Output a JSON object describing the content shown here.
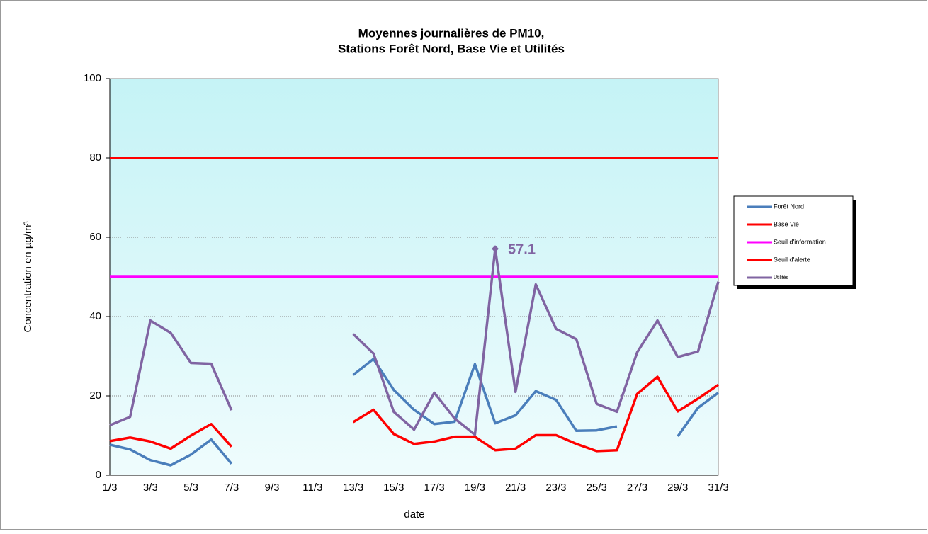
{
  "chart_data": {
    "type": "line",
    "title": [
      "Moyennes journalières de PM10,",
      "Stations Forêt Nord, Base Vie et Utilités"
    ],
    "x_label": "date",
    "y_label": "Concentration en µg/m³",
    "categories": [
      "1/3",
      null,
      "3/3",
      null,
      "5/3",
      null,
      "7/3",
      null,
      "9/3",
      null,
      "11/3",
      null,
      "13/3",
      null,
      "15/3",
      null,
      "17/3",
      null,
      "19/3",
      null,
      "21/3",
      null,
      "23/3",
      null,
      "25/3",
      null,
      "27/3",
      null,
      "29/3",
      null,
      "31/3"
    ],
    "ylim": [
      0,
      100
    ],
    "yticks": [
      0,
      20,
      40,
      60,
      80,
      100
    ],
    "grid": true,
    "legend": "right",
    "series": [
      {
        "name": "Forêt Nord",
        "color": "#4a7ebb",
        "values": [
          7.7,
          6.5,
          3.8,
          2.5,
          5.2,
          9.0,
          2.9,
          null,
          null,
          null,
          null,
          null,
          25.3,
          29.3,
          21.5,
          16.5,
          12.9,
          13.5,
          28.0,
          13.1,
          15.1,
          21.2,
          19.0,
          11.2,
          11.3,
          12.3,
          null,
          null,
          9.8,
          17.0,
          20.8
        ]
      },
      {
        "name": "Base Vie",
        "color": "#ff0000",
        "values": [
          8.6,
          9.5,
          8.5,
          6.7,
          10.0,
          12.9,
          7.2,
          null,
          null,
          null,
          null,
          null,
          13.4,
          16.5,
          10.4,
          7.9,
          8.5,
          9.7,
          9.7,
          6.3,
          6.7,
          10.1,
          10.1,
          7.9,
          6.1,
          6.3,
          20.5,
          24.8,
          16.1,
          19.3,
          22.8
        ]
      },
      {
        "name": "Seuil d'information",
        "color": "#ff00ff",
        "values": [
          50,
          50,
          50,
          50,
          50,
          50,
          50,
          50,
          50,
          50,
          50,
          50,
          50,
          50,
          50,
          50,
          50,
          50,
          50,
          50,
          50,
          50,
          50,
          50,
          50,
          50,
          50,
          50,
          50,
          50,
          50
        ]
      },
      {
        "name": "Seuil d'alerte",
        "color": "#ff0000",
        "values": [
          80,
          80,
          80,
          80,
          80,
          80,
          80,
          80,
          80,
          80,
          80,
          80,
          80,
          80,
          80,
          80,
          80,
          80,
          80,
          80,
          80,
          80,
          80,
          80,
          80,
          80,
          80,
          80,
          80,
          80,
          80
        ]
      },
      {
        "name": "Utilités",
        "color": "#8064a2",
        "values": [
          12.6,
          14.7,
          39.0,
          35.9,
          28.3,
          28.1,
          16.4,
          null,
          null,
          null,
          null,
          null,
          35.6,
          30.7,
          16.0,
          11.5,
          20.8,
          14.3,
          10.2,
          57.1,
          21.0,
          48.1,
          36.9,
          34.3,
          18.0,
          16.0,
          31.0,
          39.0,
          29.8,
          31.2,
          48.8
        ],
        "value_labels": [
          null,
          null,
          null,
          null,
          null,
          null,
          null,
          null,
          null,
          null,
          null,
          null,
          null,
          null,
          null,
          null,
          null,
          null,
          null,
          "57.1",
          null,
          null,
          null,
          null,
          null,
          null,
          null,
          null,
          null,
          null,
          null
        ]
      }
    ]
  }
}
